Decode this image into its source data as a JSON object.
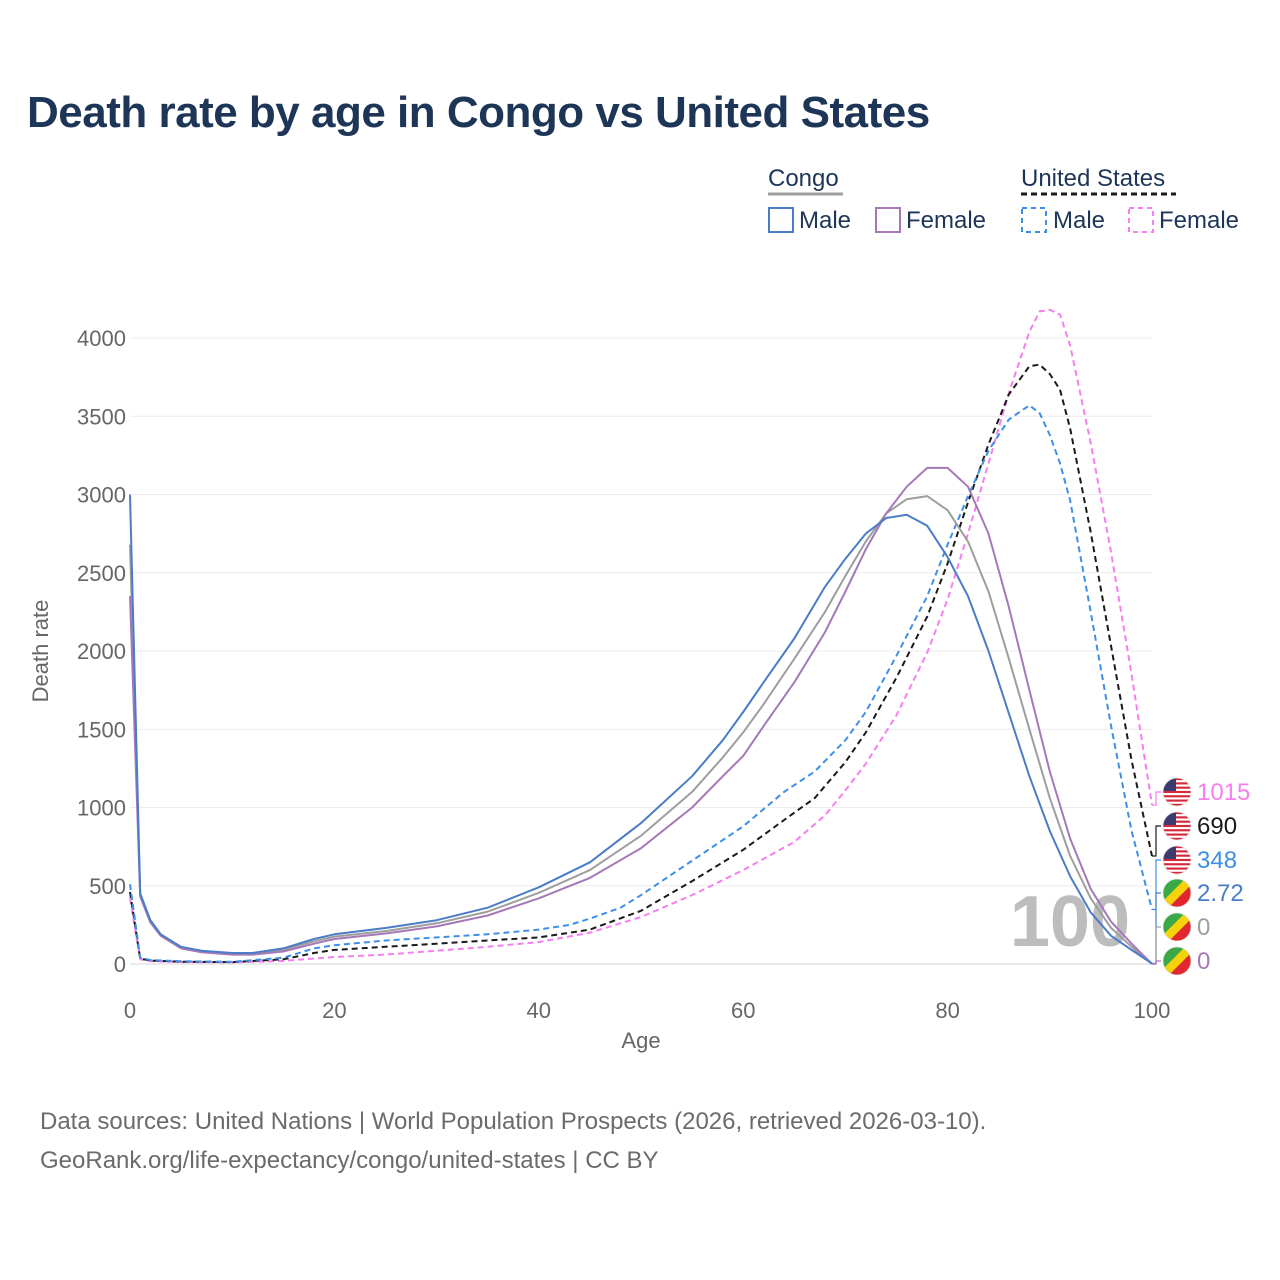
{
  "title": "Death rate by age in Congo vs United States",
  "sources": {
    "line1": "Data sources: United Nations | World Population Prospects (2026, retrieved 2026-03-10).",
    "line2": "GeoRank.org/life-expectancy/congo/united-states | CC BY"
  },
  "legend": {
    "group1": "Congo",
    "group2": "United States",
    "male": "Male",
    "female": "Female"
  },
  "year_label": "100",
  "colors": {
    "congo_male": "#4a7cc7",
    "congo_female": "#a678b8",
    "congo_total": "#9e9e9e",
    "us_male": "#3d8fe8",
    "us_female": "#f67ef0",
    "us_total": "#1a1a1a",
    "flag_us_red": "#d62839",
    "flag_us_blue": "#3c3b6e",
    "flag_congo_green": "#3aa845",
    "flag_congo_yellow": "#f5d20a",
    "flag_congo_red": "#e0262f"
  },
  "chart_data": {
    "type": "line",
    "title": "Death rate by age in Congo vs United States",
    "xlabel": "Age",
    "ylabel": "Death rate",
    "xlim": [
      0,
      100
    ],
    "ylim": [
      0,
      4000
    ],
    "xticks": [
      0,
      20,
      40,
      60,
      80,
      100
    ],
    "yticks": [
      0,
      500,
      1000,
      1500,
      2000,
      2500,
      3000,
      3500,
      4000
    ],
    "grid": true,
    "series": [
      {
        "id": "us_female",
        "country": "United States",
        "sex": "Female",
        "dashed": true,
        "end_label": "1015",
        "points": [
          [
            0,
            420
          ],
          [
            1,
            30
          ],
          [
            2,
            18
          ],
          [
            5,
            12
          ],
          [
            10,
            10
          ],
          [
            15,
            20
          ],
          [
            20,
            45
          ],
          [
            25,
            60
          ],
          [
            30,
            85
          ],
          [
            35,
            110
          ],
          [
            40,
            140
          ],
          [
            45,
            200
          ],
          [
            50,
            300
          ],
          [
            55,
            440
          ],
          [
            60,
            600
          ],
          [
            65,
            780
          ],
          [
            68,
            950
          ],
          [
            70,
            1110
          ],
          [
            72,
            1280
          ],
          [
            75,
            1590
          ],
          [
            78,
            1990
          ],
          [
            80,
            2330
          ],
          [
            82,
            2750
          ],
          [
            84,
            3200
          ],
          [
            86,
            3650
          ],
          [
            88,
            4040
          ],
          [
            89,
            4170
          ],
          [
            90,
            4180
          ],
          [
            91,
            4150
          ],
          [
            92,
            3950
          ],
          [
            94,
            3330
          ],
          [
            96,
            2630
          ],
          [
            98,
            1850
          ],
          [
            100,
            1015
          ]
        ]
      },
      {
        "id": "us_total",
        "country": "United States",
        "sex": "Total",
        "dashed": true,
        "end_label": "690",
        "points": [
          [
            0,
            460
          ],
          [
            1,
            35
          ],
          [
            2,
            22
          ],
          [
            5,
            15
          ],
          [
            10,
            12
          ],
          [
            15,
            30
          ],
          [
            18,
            70
          ],
          [
            20,
            90
          ],
          [
            25,
            110
          ],
          [
            30,
            130
          ],
          [
            35,
            150
          ],
          [
            40,
            170
          ],
          [
            45,
            220
          ],
          [
            50,
            340
          ],
          [
            55,
            530
          ],
          [
            60,
            730
          ],
          [
            64,
            920
          ],
          [
            67,
            1060
          ],
          [
            70,
            1290
          ],
          [
            72,
            1480
          ],
          [
            75,
            1830
          ],
          [
            78,
            2220
          ],
          [
            80,
            2560
          ],
          [
            82,
            2950
          ],
          [
            84,
            3320
          ],
          [
            86,
            3640
          ],
          [
            88,
            3820
          ],
          [
            89,
            3830
          ],
          [
            90,
            3770
          ],
          [
            91,
            3670
          ],
          [
            92,
            3420
          ],
          [
            94,
            2760
          ],
          [
            96,
            2030
          ],
          [
            98,
            1300
          ],
          [
            100,
            690
          ]
        ]
      },
      {
        "id": "us_male",
        "country": "United States",
        "sex": "Male",
        "dashed": true,
        "end_label": "348",
        "points": [
          [
            0,
            510
          ],
          [
            1,
            40
          ],
          [
            2,
            25
          ],
          [
            5,
            18
          ],
          [
            10,
            14
          ],
          [
            15,
            40
          ],
          [
            18,
            100
          ],
          [
            20,
            120
          ],
          [
            25,
            150
          ],
          [
            30,
            170
          ],
          [
            35,
            190
          ],
          [
            40,
            220
          ],
          [
            43,
            250
          ],
          [
            45,
            290
          ],
          [
            48,
            360
          ],
          [
            50,
            440
          ],
          [
            55,
            660
          ],
          [
            60,
            880
          ],
          [
            64,
            1100
          ],
          [
            67,
            1230
          ],
          [
            70,
            1430
          ],
          [
            72,
            1610
          ],
          [
            75,
            1970
          ],
          [
            78,
            2350
          ],
          [
            80,
            2680
          ],
          [
            82,
            2990
          ],
          [
            84,
            3280
          ],
          [
            86,
            3480
          ],
          [
            88,
            3570
          ],
          [
            89,
            3520
          ],
          [
            90,
            3380
          ],
          [
            91,
            3200
          ],
          [
            92,
            2960
          ],
          [
            94,
            2250
          ],
          [
            96,
            1520
          ],
          [
            98,
            850
          ],
          [
            100,
            348
          ]
        ]
      },
      {
        "id": "congo_male",
        "country": "Congo",
        "sex": "Male",
        "dashed": false,
        "end_label": "2.72",
        "points": [
          [
            0,
            3000
          ],
          [
            1,
            450
          ],
          [
            2,
            280
          ],
          [
            3,
            190
          ],
          [
            5,
            110
          ],
          [
            7,
            85
          ],
          [
            10,
            70
          ],
          [
            12,
            70
          ],
          [
            15,
            100
          ],
          [
            18,
            160
          ],
          [
            20,
            190
          ],
          [
            25,
            230
          ],
          [
            30,
            280
          ],
          [
            35,
            360
          ],
          [
            40,
            490
          ],
          [
            45,
            650
          ],
          [
            50,
            900
          ],
          [
            55,
            1200
          ],
          [
            58,
            1430
          ],
          [
            60,
            1610
          ],
          [
            62,
            1800
          ],
          [
            65,
            2080
          ],
          [
            68,
            2410
          ],
          [
            70,
            2590
          ],
          [
            72,
            2750
          ],
          [
            74,
            2850
          ],
          [
            76,
            2870
          ],
          [
            78,
            2800
          ],
          [
            80,
            2600
          ],
          [
            82,
            2350
          ],
          [
            84,
            2000
          ],
          [
            86,
            1600
          ],
          [
            88,
            1200
          ],
          [
            90,
            850
          ],
          [
            92,
            560
          ],
          [
            94,
            330
          ],
          [
            96,
            180
          ],
          [
            98,
            90
          ],
          [
            100,
            3
          ]
        ]
      },
      {
        "id": "congo_total",
        "country": "Congo",
        "sex": "Total",
        "dashed": false,
        "end_label": "0",
        "points": [
          [
            0,
            2680
          ],
          [
            1,
            440
          ],
          [
            2,
            270
          ],
          [
            3,
            185
          ],
          [
            5,
            105
          ],
          [
            7,
            80
          ],
          [
            10,
            65
          ],
          [
            12,
            65
          ],
          [
            15,
            90
          ],
          [
            18,
            145
          ],
          [
            20,
            175
          ],
          [
            25,
            210
          ],
          [
            30,
            260
          ],
          [
            35,
            335
          ],
          [
            40,
            455
          ],
          [
            45,
            600
          ],
          [
            50,
            820
          ],
          [
            55,
            1100
          ],
          [
            58,
            1320
          ],
          [
            60,
            1480
          ],
          [
            62,
            1660
          ],
          [
            65,
            1950
          ],
          [
            68,
            2250
          ],
          [
            70,
            2480
          ],
          [
            72,
            2700
          ],
          [
            74,
            2880
          ],
          [
            76,
            2970
          ],
          [
            78,
            2990
          ],
          [
            80,
            2900
          ],
          [
            82,
            2700
          ],
          [
            84,
            2380
          ],
          [
            86,
            1950
          ],
          [
            88,
            1500
          ],
          [
            90,
            1060
          ],
          [
            92,
            690
          ],
          [
            94,
            420
          ],
          [
            96,
            230
          ],
          [
            98,
            110
          ],
          [
            100,
            0
          ]
        ]
      },
      {
        "id": "congo_female",
        "country": "Congo",
        "sex": "Female",
        "dashed": false,
        "end_label": "0",
        "points": [
          [
            0,
            2350
          ],
          [
            1,
            430
          ],
          [
            2,
            265
          ],
          [
            3,
            180
          ],
          [
            5,
            100
          ],
          [
            7,
            75
          ],
          [
            10,
            60
          ],
          [
            12,
            60
          ],
          [
            15,
            80
          ],
          [
            18,
            130
          ],
          [
            20,
            160
          ],
          [
            25,
            195
          ],
          [
            30,
            240
          ],
          [
            35,
            310
          ],
          [
            40,
            420
          ],
          [
            45,
            550
          ],
          [
            50,
            740
          ],
          [
            55,
            1000
          ],
          [
            58,
            1200
          ],
          [
            60,
            1330
          ],
          [
            62,
            1520
          ],
          [
            65,
            1800
          ],
          [
            68,
            2120
          ],
          [
            70,
            2380
          ],
          [
            72,
            2650
          ],
          [
            74,
            2880
          ],
          [
            76,
            3050
          ],
          [
            78,
            3170
          ],
          [
            80,
            3170
          ],
          [
            82,
            3050
          ],
          [
            84,
            2750
          ],
          [
            86,
            2280
          ],
          [
            88,
            1750
          ],
          [
            90,
            1230
          ],
          [
            92,
            800
          ],
          [
            94,
            480
          ],
          [
            96,
            270
          ],
          [
            98,
            130
          ],
          [
            100,
            0
          ]
        ]
      }
    ]
  }
}
